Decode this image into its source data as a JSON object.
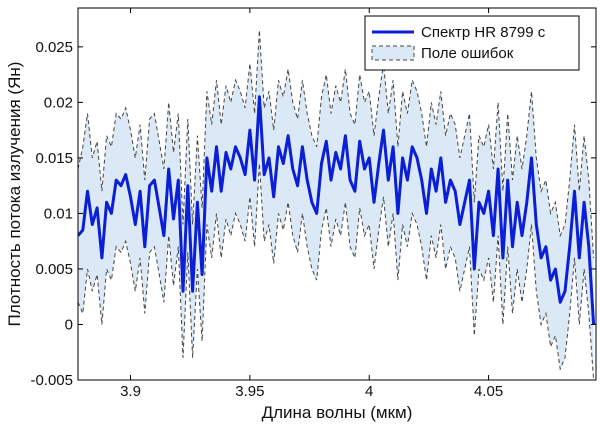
{
  "chart_data": {
    "type": "line",
    "title": "",
    "xlabel": "Длина волны (мкм)",
    "ylabel": "Плотность потока излучения (Ян)",
    "xlim": [
      3.878,
      4.095
    ],
    "ylim": [
      -0.005,
      0.0285
    ],
    "xticks": [
      3.9,
      3.95,
      4.0,
      4.05
    ],
    "xtick_labels": [
      "3.9",
      "3.95",
      "4",
      "4.05"
    ],
    "yticks": [
      -0.005,
      0,
      0.005,
      0.01,
      0.015,
      0.02,
      0.025
    ],
    "ytick_labels": [
      "-0.005",
      "0",
      "0.005",
      "0.01",
      "0.015",
      "0.02",
      "0.025"
    ],
    "grid": false,
    "legend_position": "top-right",
    "series": [
      {
        "name": "Спектр HR 8799 c",
        "color": "#0a1fd6",
        "style": "solid",
        "x": [
          3.878,
          3.88,
          3.882,
          3.884,
          3.886,
          3.888,
          3.89,
          3.892,
          3.894,
          3.896,
          3.898,
          3.9,
          3.902,
          3.904,
          3.906,
          3.908,
          3.91,
          3.912,
          3.914,
          3.916,
          3.918,
          3.92,
          3.922,
          3.924,
          3.926,
          3.928,
          3.93,
          3.932,
          3.934,
          3.936,
          3.938,
          3.94,
          3.942,
          3.944,
          3.946,
          3.948,
          3.95,
          3.952,
          3.954,
          3.956,
          3.958,
          3.96,
          3.962,
          3.964,
          3.966,
          3.968,
          3.97,
          3.972,
          3.974,
          3.976,
          3.978,
          3.98,
          3.982,
          3.984,
          3.986,
          3.988,
          3.99,
          3.992,
          3.994,
          3.996,
          3.998,
          4.0,
          4.002,
          4.004,
          4.006,
          4.008,
          4.01,
          4.012,
          4.014,
          4.016,
          4.018,
          4.02,
          4.022,
          4.024,
          4.026,
          4.028,
          4.03,
          4.032,
          4.034,
          4.036,
          4.038,
          4.04,
          4.042,
          4.044,
          4.046,
          4.048,
          4.05,
          4.052,
          4.054,
          4.056,
          4.058,
          4.06,
          4.062,
          4.064,
          4.066,
          4.068,
          4.07,
          4.072,
          4.074,
          4.076,
          4.078,
          4.08,
          4.082,
          4.084,
          4.086,
          4.088,
          4.09,
          4.092,
          4.094
        ],
        "values": [
          0.008,
          0.0085,
          0.012,
          0.009,
          0.0105,
          0.006,
          0.011,
          0.01,
          0.013,
          0.0125,
          0.0135,
          0.0115,
          0.009,
          0.012,
          0.007,
          0.0125,
          0.013,
          0.0105,
          0.008,
          0.014,
          0.0095,
          0.013,
          0.003,
          0.0125,
          0.003,
          0.011,
          0.0045,
          0.015,
          0.012,
          0.016,
          0.012,
          0.0155,
          0.014,
          0.016,
          0.015,
          0.0135,
          0.0175,
          0.013,
          0.0205,
          0.0135,
          0.015,
          0.0115,
          0.016,
          0.0145,
          0.017,
          0.014,
          0.0125,
          0.016,
          0.013,
          0.011,
          0.01,
          0.0145,
          0.0165,
          0.013,
          0.0155,
          0.014,
          0.017,
          0.013,
          0.012,
          0.0165,
          0.014,
          0.015,
          0.011,
          0.0145,
          0.0175,
          0.013,
          0.016,
          0.01,
          0.015,
          0.013,
          0.016,
          0.015,
          0.013,
          0.01,
          0.014,
          0.012,
          0.015,
          0.011,
          0.013,
          0.012,
          0.009,
          0.011,
          0.013,
          0.005,
          0.011,
          0.01,
          0.012,
          0.008,
          0.014,
          0.006,
          0.013,
          0.007,
          0.011,
          0.008,
          0.011,
          0.015,
          0.009,
          0.006,
          0.007,
          0.004,
          0.005,
          0.002,
          0.003,
          0.007,
          0.012,
          0.006,
          0.011,
          0.007,
          0.0
        ]
      },
      {
        "name": "Поле ошибок",
        "color": "#444444",
        "fill": "#dbe9f6",
        "style": "dashed",
        "x": [
          3.878,
          3.88,
          3.882,
          3.884,
          3.886,
          3.888,
          3.89,
          3.892,
          3.894,
          3.896,
          3.898,
          3.9,
          3.902,
          3.904,
          3.906,
          3.908,
          3.91,
          3.912,
          3.914,
          3.916,
          3.918,
          3.92,
          3.922,
          3.924,
          3.926,
          3.928,
          3.93,
          3.932,
          3.934,
          3.936,
          3.938,
          3.94,
          3.942,
          3.944,
          3.946,
          3.948,
          3.95,
          3.952,
          3.954,
          3.956,
          3.958,
          3.96,
          3.962,
          3.964,
          3.966,
          3.968,
          3.97,
          3.972,
          3.974,
          3.976,
          3.978,
          3.98,
          3.982,
          3.984,
          3.986,
          3.988,
          3.99,
          3.992,
          3.994,
          3.996,
          3.998,
          4.0,
          4.002,
          4.004,
          4.006,
          4.008,
          4.01,
          4.012,
          4.014,
          4.016,
          4.018,
          4.02,
          4.022,
          4.024,
          4.026,
          4.028,
          4.03,
          4.032,
          4.034,
          4.036,
          4.038,
          4.04,
          4.042,
          4.044,
          4.046,
          4.048,
          4.05,
          4.052,
          4.054,
          4.056,
          4.058,
          4.06,
          4.062,
          4.064,
          4.066,
          4.068,
          4.07,
          4.072,
          4.074,
          4.076,
          4.078,
          4.08,
          4.082,
          4.084,
          4.086,
          4.088,
          4.09,
          4.092,
          4.094
        ],
        "lower": [
          0.002,
          0.001,
          0.005,
          0.003,
          0.0045,
          0.0,
          0.005,
          0.004,
          0.007,
          0.0065,
          0.0075,
          0.0055,
          0.003,
          0.006,
          0.001,
          0.0065,
          0.007,
          0.0045,
          0.002,
          0.008,
          0.0035,
          0.007,
          -0.003,
          0.0065,
          -0.003,
          0.005,
          -0.0015,
          0.009,
          0.006,
          0.01,
          0.006,
          0.0095,
          0.008,
          0.01,
          0.009,
          0.0075,
          0.0115,
          0.007,
          0.0145,
          0.0075,
          0.009,
          0.0055,
          0.01,
          0.0085,
          0.011,
          0.008,
          0.0065,
          0.01,
          0.007,
          0.005,
          0.004,
          0.0085,
          0.0105,
          0.007,
          0.0095,
          0.008,
          0.011,
          0.007,
          0.006,
          0.0105,
          0.008,
          0.009,
          0.005,
          0.0085,
          0.0115,
          0.007,
          0.01,
          0.004,
          0.009,
          0.007,
          0.01,
          0.009,
          0.007,
          0.004,
          0.008,
          0.006,
          0.009,
          0.005,
          0.007,
          0.006,
          0.003,
          0.005,
          0.007,
          -0.001,
          0.005,
          0.004,
          0.006,
          0.002,
          0.008,
          0.0,
          0.007,
          0.001,
          0.005,
          0.002,
          0.005,
          0.009,
          0.003,
          0.0,
          0.001,
          -0.002,
          -0.001,
          -0.004,
          -0.003,
          0.001,
          0.006,
          0.0,
          0.005,
          0.001,
          -0.005
        ],
        "upper": [
          0.014,
          0.016,
          0.019,
          0.015,
          0.0165,
          0.012,
          0.017,
          0.016,
          0.019,
          0.0185,
          0.0195,
          0.0175,
          0.015,
          0.018,
          0.013,
          0.0185,
          0.019,
          0.0165,
          0.014,
          0.02,
          0.0155,
          0.019,
          0.009,
          0.0185,
          0.009,
          0.017,
          0.0105,
          0.021,
          0.018,
          0.022,
          0.018,
          0.0215,
          0.02,
          0.022,
          0.021,
          0.0195,
          0.0235,
          0.019,
          0.0265,
          0.0195,
          0.021,
          0.0175,
          0.022,
          0.0205,
          0.023,
          0.02,
          0.0185,
          0.022,
          0.019,
          0.017,
          0.016,
          0.0205,
          0.0225,
          0.019,
          0.0215,
          0.02,
          0.023,
          0.019,
          0.018,
          0.0225,
          0.02,
          0.021,
          0.017,
          0.0205,
          0.0235,
          0.019,
          0.022,
          0.016,
          0.021,
          0.019,
          0.022,
          0.021,
          0.019,
          0.016,
          0.02,
          0.018,
          0.021,
          0.017,
          0.019,
          0.018,
          0.015,
          0.017,
          0.019,
          0.011,
          0.017,
          0.016,
          0.018,
          0.014,
          0.02,
          0.012,
          0.019,
          0.013,
          0.017,
          0.014,
          0.017,
          0.021,
          0.015,
          0.012,
          0.013,
          0.01,
          0.011,
          0.008,
          0.009,
          0.013,
          0.018,
          0.012,
          0.017,
          0.013,
          0.006
        ]
      }
    ]
  }
}
